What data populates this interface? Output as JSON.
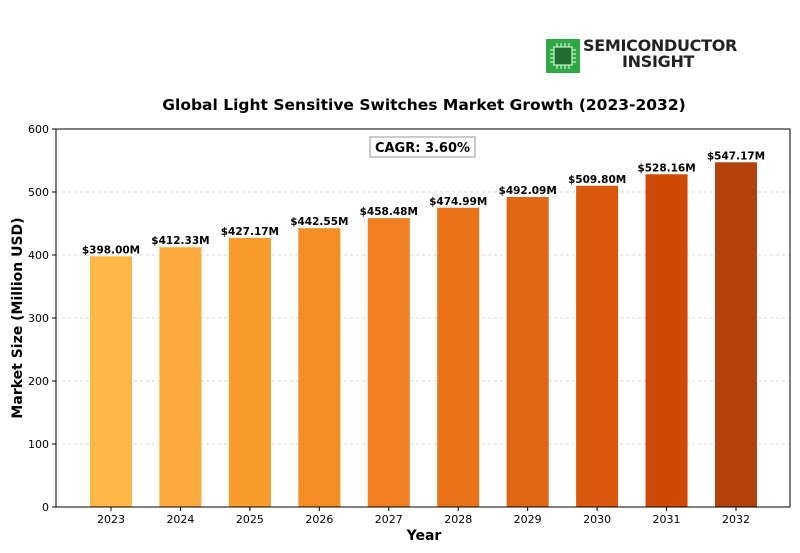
{
  "brand": {
    "line1": "SEMICONDUCTOR",
    "line2": "INSIGHT",
    "icon": "chip-icon",
    "icon_color": "#2fa84a"
  },
  "chart_data": {
    "type": "bar",
    "title": "Global Light Sensitive Switches Market Growth (2023-2032)",
    "xlabel": "Year",
    "ylabel": "Market Size (Million USD)",
    "categories": [
      "2023",
      "2024",
      "2025",
      "2026",
      "2027",
      "2028",
      "2029",
      "2030",
      "2031",
      "2032"
    ],
    "values": [
      398.0,
      412.33,
      427.17,
      442.55,
      458.48,
      474.99,
      492.09,
      509.8,
      528.16,
      547.17
    ],
    "data_labels": [
      "$398.00M",
      "$412.33M",
      "$427.17M",
      "$442.55M",
      "$458.48M",
      "$474.99M",
      "$492.09M",
      "$509.80M",
      "$528.16M",
      "$547.17M"
    ],
    "bar_colors": [
      "#fdb847",
      "#fcaa3c",
      "#fa9b2e",
      "#f58d25",
      "#f07f1f",
      "#e97219",
      "#e26513",
      "#da580c",
      "#cf4a05",
      "#b5420a"
    ],
    "ylim": [
      0,
      600
    ],
    "yticks": [
      0,
      100,
      200,
      300,
      400,
      500,
      600
    ],
    "grid": "horizontal-dashed",
    "annotation": "CAGR: 3.60%"
  }
}
